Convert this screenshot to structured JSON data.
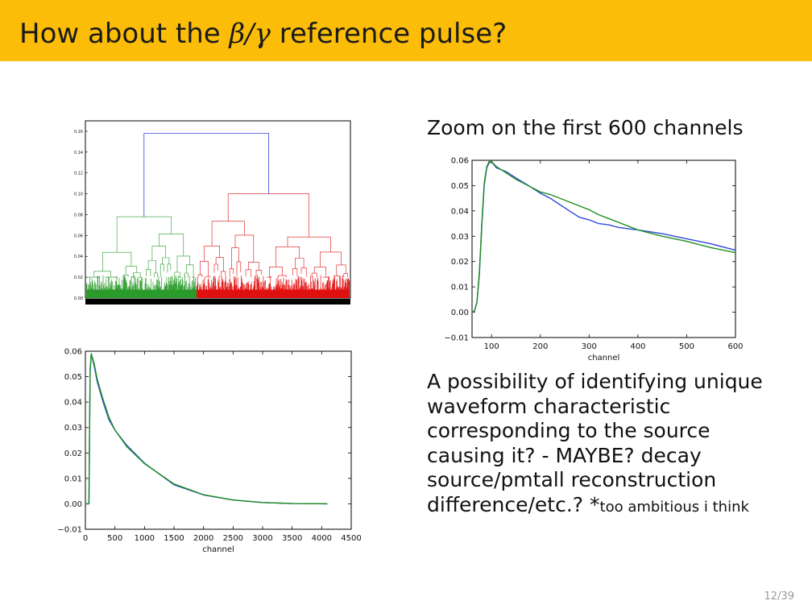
{
  "slide": {
    "title_prefix": "How about the ",
    "title_math": "β/γ",
    "title_suffix": " reference pulse?",
    "zoom_caption": "Zoom on the first 600 channels",
    "description_main": "A possibility of identifying unique waveform characteristic corresponding to the source causing it? - MAYBE? decay source/pmtall reconstruction difference/etc.? *",
    "description_small": "too ambitious i think",
    "page_number": "12/39",
    "colors": {
      "header": "#fbbd08",
      "blue": "#3048d8",
      "green": "#1f8f1f",
      "red": "#e01010",
      "dendro_green": "#2a9a2a"
    }
  },
  "chart_data": [
    {
      "type": "dendrogram",
      "title": "",
      "ylim": [
        0,
        0.17
      ],
      "yticks": [
        "0.00",
        "0.02",
        "0.04",
        "0.06",
        "0.08",
        "0.10",
        "0.12",
        "0.14",
        "0.16"
      ],
      "root_height": 0.158,
      "clusters": [
        {
          "name": "green",
          "merge_height": 0.078
        },
        {
          "name": "red",
          "merge_height": 0.1
        }
      ]
    },
    {
      "type": "line",
      "xlabel": "channel",
      "ylabel": "",
      "xlim": [
        0,
        4500
      ],
      "ylim": [
        -0.01,
        0.06
      ],
      "xticks": [
        0,
        500,
        1000,
        1500,
        2000,
        2500,
        3000,
        3500,
        4000,
        4500
      ],
      "yticks": [
        -0.01,
        0.0,
        0.01,
        0.02,
        0.03,
        0.04,
        0.05,
        0.06
      ],
      "series": [
        {
          "name": "blue",
          "x": [
            0,
            60,
            80,
            100,
            150,
            200,
            300,
            400,
            500,
            700,
            1000,
            1500,
            2000,
            2500,
            3000,
            3500,
            4096
          ],
          "y": [
            0.0,
            0.0,
            0.052,
            0.059,
            0.054,
            0.048,
            0.04,
            0.033,
            0.029,
            0.023,
            0.016,
            0.0075,
            0.0035,
            0.0015,
            0.0005,
            0.0001,
            0.0
          ]
        },
        {
          "name": "green",
          "x": [
            0,
            60,
            80,
            100,
            150,
            200,
            300,
            400,
            500,
            700,
            1000,
            1500,
            2000,
            2500,
            3000,
            3500,
            4096
          ],
          "y": [
            0.0,
            0.0,
            0.053,
            0.059,
            0.055,
            0.049,
            0.041,
            0.034,
            0.029,
            0.0225,
            0.0158,
            0.0078,
            0.0036,
            0.0015,
            0.0005,
            0.0001,
            0.0
          ]
        }
      ]
    },
    {
      "type": "line",
      "xlabel": "channel",
      "ylabel": "",
      "xlim": [
        60,
        600
      ],
      "ylim": [
        -0.01,
        0.06
      ],
      "xticks": [
        100,
        200,
        300,
        400,
        500,
        600
      ],
      "yticks": [
        -0.01,
        0.0,
        0.01,
        0.02,
        0.03,
        0.04,
        0.05,
        0.06
      ],
      "series": [
        {
          "name": "blue",
          "x": [
            60,
            65,
            70,
            75,
            80,
            85,
            90,
            95,
            100,
            110,
            130,
            150,
            180,
            200,
            220,
            240,
            260,
            280,
            300,
            320,
            340,
            360,
            380,
            400,
            450,
            500,
            550,
            600
          ],
          "y": [
            0.0,
            0.0005,
            0.004,
            0.015,
            0.034,
            0.05,
            0.057,
            0.059,
            0.0595,
            0.057,
            0.0555,
            0.053,
            0.0495,
            0.047,
            0.045,
            0.0425,
            0.04,
            0.0375,
            0.0365,
            0.035,
            0.0345,
            0.0335,
            0.033,
            0.0325,
            0.031,
            0.029,
            0.027,
            0.0245
          ]
        },
        {
          "name": "green",
          "x": [
            60,
            65,
            70,
            75,
            80,
            85,
            90,
            95,
            100,
            110,
            130,
            150,
            180,
            200,
            220,
            240,
            260,
            280,
            300,
            320,
            340,
            360,
            380,
            400,
            450,
            500,
            550,
            600
          ],
          "y": [
            0.0,
            0.0005,
            0.004,
            0.016,
            0.035,
            0.051,
            0.0575,
            0.0595,
            0.0595,
            0.0575,
            0.055,
            0.0525,
            0.0495,
            0.0475,
            0.0465,
            0.045,
            0.0435,
            0.042,
            0.0405,
            0.0385,
            0.037,
            0.0355,
            0.034,
            0.0325,
            0.03,
            0.028,
            0.0255,
            0.0235
          ]
        }
      ]
    }
  ]
}
